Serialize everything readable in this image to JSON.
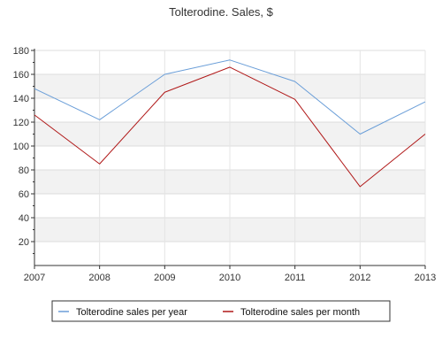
{
  "chart_data": {
    "type": "line",
    "title": "Tolterodine. Sales, $",
    "x": [
      "2007",
      "2008",
      "2009",
      "2010",
      "2011",
      "2012",
      "2013"
    ],
    "ylim": [
      0,
      180
    ],
    "yticks": [
      20,
      40,
      60,
      80,
      100,
      120,
      140,
      160,
      180
    ],
    "grid": true,
    "alternating_bands": true,
    "legend_position": "bottom",
    "series": [
      {
        "name": "Tolterodine sales per year",
        "color": "#6a9ed8",
        "values": [
          148,
          122,
          160,
          172,
          154,
          110,
          137
        ]
      },
      {
        "name": "Tolterodine sales per month",
        "color": "#b01818",
        "values": [
          126,
          85,
          145,
          166,
          139,
          66,
          110
        ]
      }
    ]
  }
}
